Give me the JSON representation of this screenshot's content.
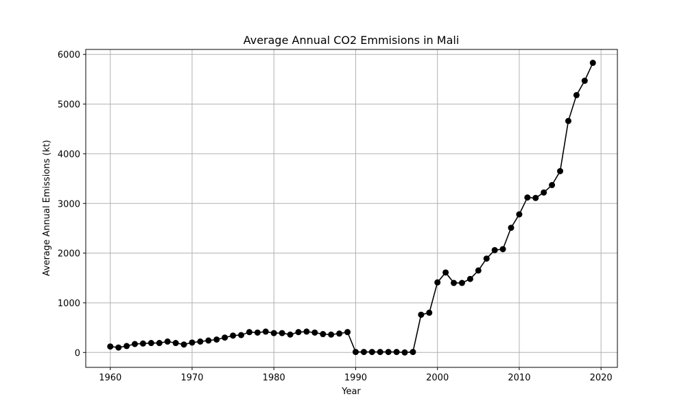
{
  "chart_data": {
    "type": "line",
    "title": "Average Annual CO2 Emmisions in Mali",
    "xlabel": "Year",
    "ylabel": "Average Annual Emissions (kt)",
    "xlim": [
      1957,
      2022
    ],
    "ylim": [
      -300,
      6100
    ],
    "xticks": [
      1960,
      1970,
      1980,
      1990,
      2000,
      2010,
      2020
    ],
    "yticks": [
      0,
      1000,
      2000,
      3000,
      4000,
      5000,
      6000
    ],
    "grid": true,
    "line_color": "#000000",
    "marker": "circle",
    "x": [
      1960,
      1961,
      1962,
      1963,
      1964,
      1965,
      1966,
      1967,
      1968,
      1969,
      1970,
      1971,
      1972,
      1973,
      1974,
      1975,
      1976,
      1977,
      1978,
      1979,
      1980,
      1981,
      1982,
      1983,
      1984,
      1985,
      1986,
      1987,
      1988,
      1989,
      1990,
      1991,
      1992,
      1993,
      1994,
      1995,
      1996,
      1997,
      1998,
      1999,
      2000,
      2001,
      2002,
      2003,
      2004,
      2005,
      2006,
      2007,
      2008,
      2009,
      2010,
      2011,
      2012,
      2013,
      2014,
      2015,
      2016,
      2017,
      2018,
      2019
    ],
    "y": [
      120,
      100,
      130,
      170,
      180,
      190,
      190,
      220,
      190,
      160,
      200,
      220,
      240,
      260,
      300,
      340,
      350,
      410,
      400,
      420,
      390,
      390,
      360,
      410,
      420,
      400,
      370,
      360,
      380,
      410,
      10,
      10,
      10,
      10,
      10,
      10,
      0,
      10,
      760,
      800,
      1410,
      1610,
      1400,
      1400,
      1480,
      1650,
      1890,
      2060,
      2080,
      2510,
      2780,
      3120,
      3110,
      3220,
      3370,
      3650,
      4660,
      5180,
      5470,
      5830
    ]
  }
}
